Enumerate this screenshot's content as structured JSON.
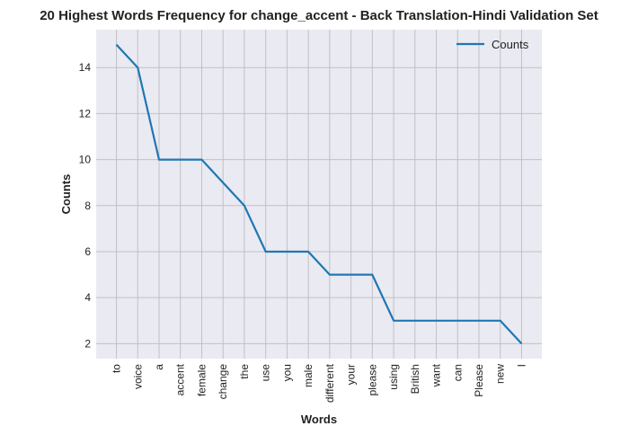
{
  "chart_data": {
    "type": "line",
    "title": "20 Highest Words Frequency for change_accent - Back Translation-Hindi Validation Set",
    "xlabel": "Words",
    "ylabel": "Counts",
    "categories": [
      "to",
      "voice",
      "a",
      "accent",
      "female",
      "change",
      "the",
      "use",
      "you",
      "male",
      "different",
      "your",
      "please",
      "using",
      "British",
      "want",
      "can",
      "Please",
      "new",
      "I"
    ],
    "series": [
      {
        "name": "Counts",
        "values": [
          15,
          14,
          10,
          10,
          10,
          9,
          8,
          6,
          6,
          6,
          5,
          5,
          5,
          3,
          3,
          3,
          3,
          3,
          3,
          2
        ]
      }
    ],
    "yticks": [
      2,
      4,
      6,
      8,
      10,
      12,
      14
    ],
    "ylim": [
      1.35,
      15.65
    ],
    "grid": true,
    "legend_position": "top-right",
    "colors": {
      "line": "#1f77b4",
      "plot_bg": "#eaeaf2",
      "grid": "#c0c0c4"
    }
  }
}
